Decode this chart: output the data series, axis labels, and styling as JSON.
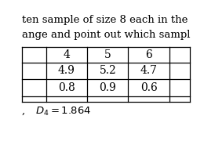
{
  "title_line1": "ten sample of size 8 each in the ",
  "title_line2": "ange and point out which sampl",
  "row1": [
    "4",
    "5",
    "6",
    ""
  ],
  "row2": [
    "4.9",
    "5.2",
    "4.7",
    ""
  ],
  "row3": [
    "0.8",
    "0.9",
    "0.6",
    ""
  ],
  "footer1": ", ",
  "footer2": "D",
  "footer_sub": "4",
  "footer3": " = 1.864",
  "bg_color": "#ffffff",
  "text_color": "#000000",
  "font_size": 9.5,
  "table_font_size": 10
}
